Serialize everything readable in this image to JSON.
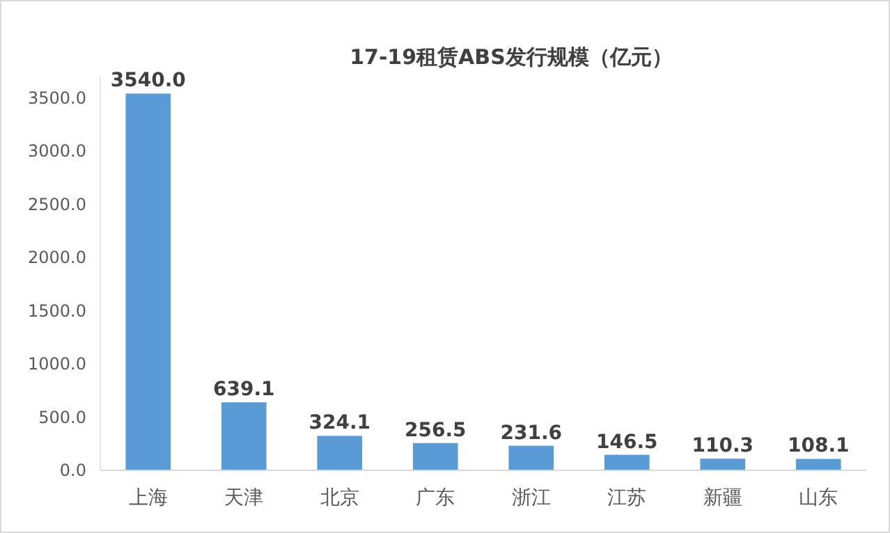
{
  "chart_data": {
    "type": "bar",
    "title": "17-19租赁ABS发行规模（亿元）",
    "categories": [
      "上海",
      "天津",
      "北京",
      "广东",
      "浙江",
      "江苏",
      "新疆",
      "山东"
    ],
    "values": [
      3540.0,
      639.1,
      324.1,
      256.5,
      231.6,
      146.5,
      110.3,
      108.1
    ],
    "value_labels": [
      "3540.0",
      "639.1",
      "324.1",
      "256.5",
      "231.6",
      "146.5",
      "110.3",
      "108.1"
    ],
    "color": "#5b9bd5",
    "ylim": [
      0,
      3700
    ],
    "yticks": [
      {
        "value": 0,
        "label": "0.0"
      },
      {
        "value": 500,
        "label": "500.0"
      },
      {
        "value": 1000,
        "label": "1000.0"
      },
      {
        "value": 1500,
        "label": "1500.0"
      },
      {
        "value": 2000,
        "label": "2000.0"
      },
      {
        "value": 2500,
        "label": "2500.0"
      },
      {
        "value": 3000,
        "label": "3000.0"
      },
      {
        "value": 3500,
        "label": "3500.0"
      }
    ],
    "grid": false
  }
}
